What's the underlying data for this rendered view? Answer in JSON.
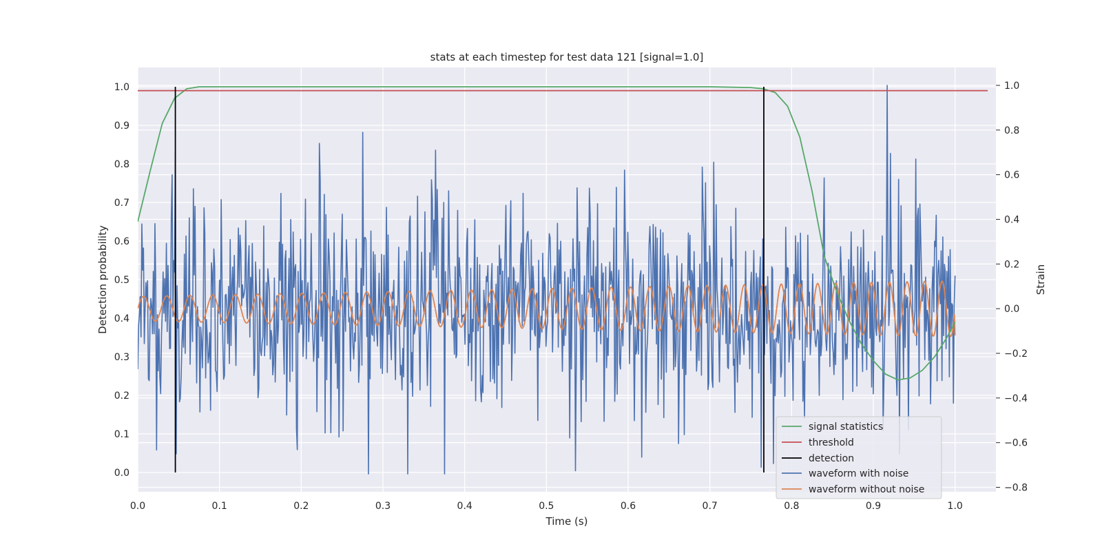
{
  "chart_data": {
    "type": "line",
    "title": "stats at each timestep for test data 121 [signal=1.0]",
    "xlabel": "Time (s)",
    "ylabel_left": "Detection probability",
    "ylabel_right": "Strain",
    "xlim": [
      0.0,
      1.05
    ],
    "ylim_left": [
      -0.05,
      1.05
    ],
    "ylim_right": [
      -0.82,
      1.08
    ],
    "x_ticks": [
      0.0,
      0.1,
      0.2,
      0.3,
      0.4,
      0.5,
      0.6,
      0.7,
      0.8,
      0.9,
      1.0
    ],
    "x_tick_labels": [
      "0.0",
      "0.1",
      "0.2",
      "0.3",
      "0.4",
      "0.5",
      "0.6",
      "0.7",
      "0.8",
      "0.9",
      "1.0"
    ],
    "y_left_ticks": [
      0.0,
      0.1,
      0.2,
      0.3,
      0.4,
      0.5,
      0.6,
      0.7,
      0.8,
      0.9,
      1.0
    ],
    "y_left_tick_labels": [
      "0.0",
      "0.1",
      "0.2",
      "0.3",
      "0.4",
      "0.5",
      "0.6",
      "0.7",
      "0.8",
      "0.9",
      "1.0"
    ],
    "y_right_ticks": [
      -0.8,
      -0.6,
      -0.4,
      -0.2,
      0.0,
      0.2,
      0.4,
      0.6,
      0.8,
      1.0
    ],
    "y_right_tick_labels": [
      "−0.8",
      "−0.6",
      "−0.4",
      "−0.2",
      "0.0",
      "0.2",
      "0.4",
      "0.6",
      "0.8",
      "1.0"
    ],
    "grid": true,
    "legend_position": "lower-right",
    "series": [
      {
        "name": "signal statistics",
        "axis": "left",
        "color": "#55a868",
        "x": [
          0.0,
          0.015,
          0.03,
          0.045,
          0.06,
          0.075,
          0.1,
          0.2,
          0.3,
          0.4,
          0.5,
          0.6,
          0.7,
          0.75,
          0.765,
          0.78,
          0.795,
          0.81,
          0.825,
          0.84,
          0.855,
          0.87,
          0.885,
          0.9,
          0.915,
          0.93,
          0.945,
          0.96,
          0.975,
          0.99,
          1.0
        ],
        "y": [
          0.65,
          0.78,
          0.905,
          0.97,
          0.995,
          1.0,
          1.0,
          1.0,
          1.0,
          1.0,
          1.0,
          1.0,
          1.0,
          0.998,
          0.995,
          0.985,
          0.95,
          0.87,
          0.73,
          0.56,
          0.47,
          0.395,
          0.335,
          0.29,
          0.255,
          0.24,
          0.245,
          0.265,
          0.3,
          0.35,
          0.39
        ]
      },
      {
        "name": "threshold",
        "axis": "left",
        "color": "#c44e52",
        "x": [
          0.0,
          1.04
        ],
        "y": [
          0.99,
          0.99
        ]
      },
      {
        "name": "detection",
        "axis": "left",
        "color": "#000000",
        "events": [
          {
            "x": 0.046,
            "y": [
              0.0,
              1.0
            ]
          },
          {
            "x": 0.766,
            "y": [
              0.0,
              1.0
            ]
          }
        ]
      },
      {
        "name": "waveform with noise",
        "axis": "right",
        "color": "#4c72b0",
        "x_range": [
          0.0,
          1.0
        ],
        "n_points": 1000,
        "mean": 0.0,
        "std": 0.24,
        "y_range": [
          -0.74,
          1.0
        ],
        "peaks": [
          {
            "x": 0.0465,
            "y": 0.7
          },
          {
            "x": 0.222,
            "y": 0.74
          },
          {
            "x": 0.275,
            "y": 0.79
          },
          {
            "x": 0.364,
            "y": 0.71
          },
          {
            "x": 0.917,
            "y": 1.0
          },
          {
            "x": 0.952,
            "y": 0.67
          }
        ],
        "troughs": [
          {
            "x": 0.047,
            "y": -0.65
          },
          {
            "x": 0.282,
            "y": -0.74
          },
          {
            "x": 0.375,
            "y": -0.74
          },
          {
            "x": 0.763,
            "y": -0.71
          },
          {
            "x": 0.932,
            "y": -0.65
          }
        ]
      },
      {
        "name": "waveform without noise",
        "axis": "right",
        "color": "#dd8452",
        "x_range": [
          0.0,
          1.0
        ],
        "n_cycles": 41,
        "amplitude_start": 0.055,
        "amplitude_end": 0.125,
        "offset": 0.0,
        "end_value": -0.12
      }
    ]
  }
}
